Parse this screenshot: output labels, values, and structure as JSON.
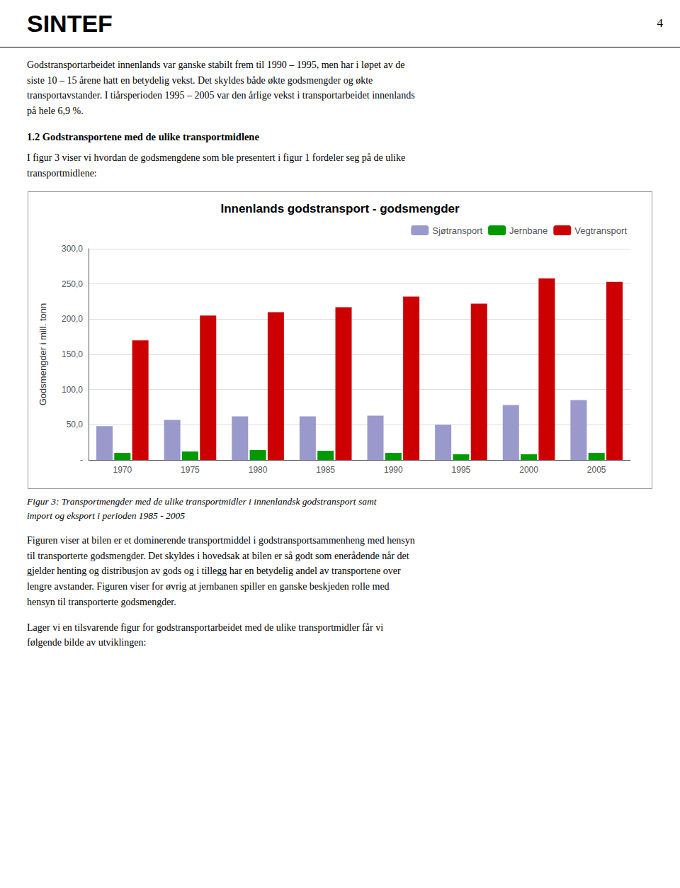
{
  "chart_data": {
    "type": "bar",
    "title": "Innenlands godstransport - godsmengder",
    "ylabel": "Godsmengder i mill. tonn",
    "categories": [
      "1970",
      "1975",
      "1980",
      "1985",
      "1990",
      "1995",
      "2000",
      "2005"
    ],
    "series": [
      {
        "name": "Sjøtransport",
        "color": "#9999CC",
        "values": [
          48,
          57,
          62,
          62,
          63,
          50,
          78,
          85
        ]
      },
      {
        "name": "Jernbane",
        "color": "#009900",
        "values": [
          10,
          12,
          14,
          13,
          10,
          8,
          8,
          10
        ]
      },
      {
        "name": "Vegtransport",
        "color": "#CC0000",
        "values": [
          170,
          205,
          210,
          217,
          232,
          222,
          258,
          253
        ]
      }
    ],
    "ylim": [
      0,
      300
    ],
    "yticks": [
      {
        "value": 0,
        "label": "-"
      },
      {
        "value": 50,
        "label": "50,0"
      },
      {
        "value": 100,
        "label": "100,0"
      },
      {
        "value": 150,
        "label": "150,0"
      },
      {
        "value": 200,
        "label": "200,0"
      },
      {
        "value": 250,
        "label": "250,0"
      },
      {
        "value": 300,
        "label": "300,0"
      }
    ],
    "grid": true,
    "legend": "upper right",
    "annotations": [
      "SINTEF",
      "4",
      "Godstransportarbeidet innenlands var ganske stabilt frem til 1990 – 1995, men har i løpet av de\nsiste 10 – 15 årene hatt en betydelig vekst.  Det skyldes både økte godsmengder og økte\ntransportavstander. I tiårsperioden 1995 – 2005 var den årlige vekst i transportarbeidet innenlands\npå hele 6,9 %.",
      "1.2 Godstransportene med de ulike transportmidlene",
      "I figur 3 viser vi hvordan de godsmengdene som ble presentert i figur 1 fordeler seg på de ulike\ntransportmidlene:",
      "Figur 3:  Transportmengder med de ulike transportmidler i innenlandsk godstransport samt\nimport og eksport i perioden 1985 - 2005",
      "Figuren viser at bilen er et dominerende transportmiddel i godstransportsammenheng med hensyn\ntil transporterte godsmengder.  Det skyldes i hovedsak at bilen er så godt som enerådende når det\ngjelder henting og distribusjon av gods og i tillegg har en betydelig andel av transportene over\nlengre avstander. Figuren viser for øvrig at jernbanen spiller en ganske beskjeden rolle med\nhensyn til transporterte godsmengder.",
      "Lager vi en tilsvarende figur for godstransportarbeidet med de ulike transportmidler får vi\nfølgende bilde av utviklingen:"
    ]
  }
}
